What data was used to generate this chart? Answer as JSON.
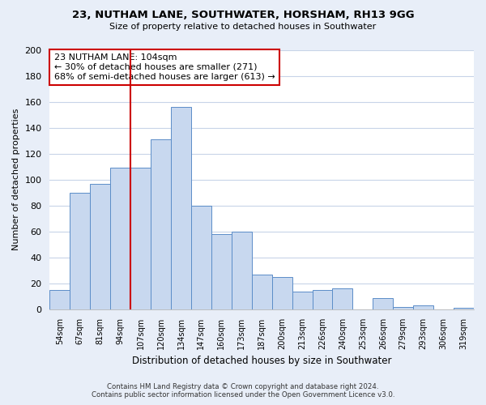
{
  "title": "23, NUTHAM LANE, SOUTHWATER, HORSHAM, RH13 9GG",
  "subtitle": "Size of property relative to detached houses in Southwater",
  "xlabel": "Distribution of detached houses by size in Southwater",
  "ylabel": "Number of detached properties",
  "bar_labels": [
    "54sqm",
    "67sqm",
    "81sqm",
    "94sqm",
    "107sqm",
    "120sqm",
    "134sqm",
    "147sqm",
    "160sqm",
    "173sqm",
    "187sqm",
    "200sqm",
    "213sqm",
    "226sqm",
    "240sqm",
    "253sqm",
    "266sqm",
    "279sqm",
    "293sqm",
    "306sqm",
    "319sqm"
  ],
  "bar_values": [
    15,
    90,
    97,
    109,
    109,
    131,
    156,
    80,
    58,
    60,
    27,
    25,
    14,
    15,
    16,
    0,
    9,
    2,
    3,
    0,
    1
  ],
  "bar_color": "#c8d8ef",
  "bar_edge_color": "#5b8dc8",
  "vline_color": "#cc0000",
  "annotation_title": "23 NUTHAM LANE: 104sqm",
  "annotation_line1": "← 30% of detached houses are smaller (271)",
  "annotation_line2": "68% of semi-detached houses are larger (613) →",
  "annotation_box_color": "white",
  "annotation_box_edge": "#cc0000",
  "ylim": [
    0,
    200
  ],
  "yticks": [
    0,
    20,
    40,
    60,
    80,
    100,
    120,
    140,
    160,
    180,
    200
  ],
  "footer_line1": "Contains HM Land Registry data © Crown copyright and database right 2024.",
  "footer_line2": "Contains public sector information licensed under the Open Government Licence v3.0.",
  "background_color": "#e8eef8",
  "plot_bg_color": "#ffffff",
  "grid_color": "#c8d4e8"
}
